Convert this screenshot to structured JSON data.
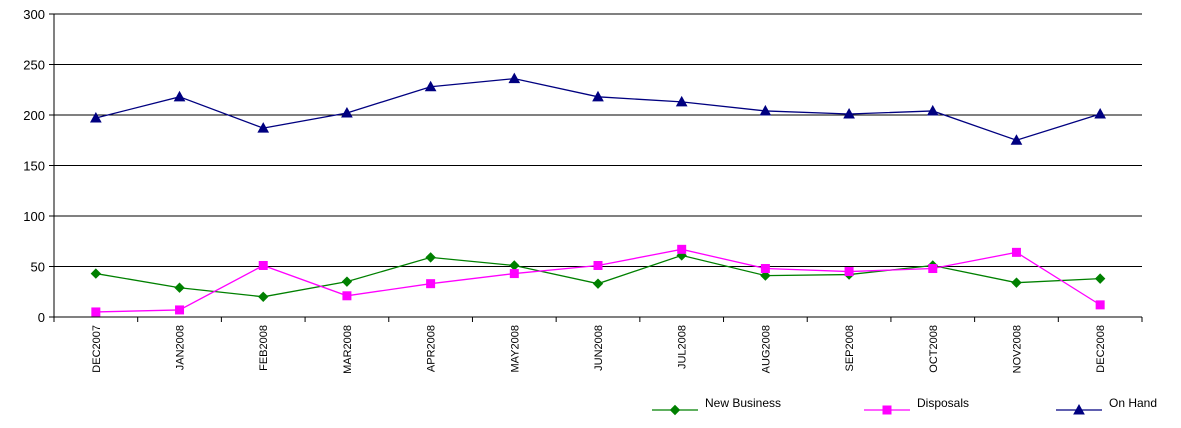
{
  "chart_data": {
    "type": "line",
    "title": "",
    "xlabel": "",
    "ylabel": "",
    "ylim": [
      0,
      300
    ],
    "yticks": [
      0,
      50,
      100,
      150,
      200,
      250,
      300
    ],
    "grid": true,
    "legend_position": "bottom-right",
    "categories": [
      "DEC2007",
      "JAN2008",
      "FEB2008",
      "MAR2008",
      "APR2008",
      "MAY2008",
      "JUN2008",
      "JUL2008",
      "AUG2008",
      "SEP2008",
      "OCT2008",
      "NOV2008",
      "DEC2008"
    ],
    "series": [
      {
        "name": "New Business",
        "color": "#008000",
        "marker": "diamond",
        "values": [
          43,
          29,
          20,
          35,
          59,
          51,
          33,
          61,
          41,
          42,
          51,
          34,
          38
        ]
      },
      {
        "name": "Disposals",
        "color": "#FF00FF",
        "marker": "square",
        "values": [
          5,
          7,
          51,
          21,
          33,
          43,
          51,
          67,
          48,
          45,
          48,
          64,
          12
        ]
      },
      {
        "name": "On Hand",
        "color": "#000080",
        "marker": "triangle",
        "values": [
          197,
          218,
          187,
          202,
          228,
          236,
          218,
          213,
          204,
          201,
          204,
          175,
          201
        ]
      }
    ]
  }
}
